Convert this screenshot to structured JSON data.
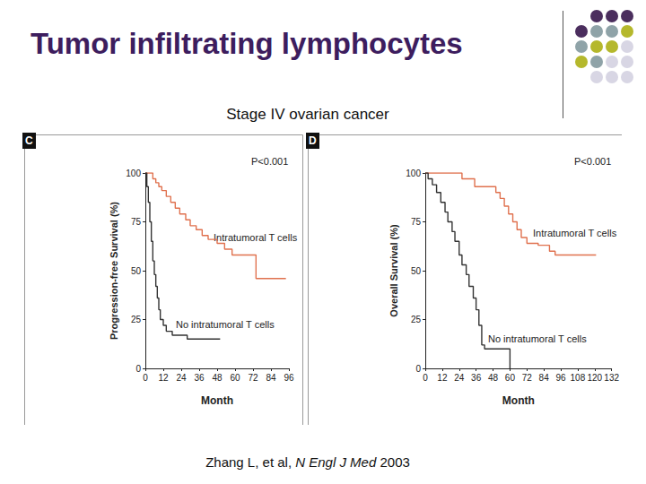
{
  "title": "Tumor infiltrating lymphocytes",
  "subtitle": "Stage IV ovarian cancer",
  "citation": {
    "authors": "Zhang L, et al,",
    "journal": "N Engl J Med",
    "year": "2003"
  },
  "chart_data": [
    {
      "type": "step",
      "panel": "C",
      "annotation": "P<0.001",
      "xlabel": "Month",
      "ylabel": "Progression-free Survival (%)",
      "xlim": [
        0,
        96
      ],
      "xticks": [
        0,
        12,
        24,
        36,
        48,
        60,
        72,
        84,
        96
      ],
      "ylim": [
        0,
        100
      ],
      "yticks": [
        0,
        25,
        50,
        75,
        100
      ],
      "grid": false,
      "series": [
        {
          "name": "Intratumoral T cells",
          "color": "#e0714e",
          "x": [
            0,
            5,
            7,
            9,
            11,
            14,
            17,
            20,
            23,
            27,
            30,
            34,
            38,
            42,
            48,
            53,
            58,
            74,
            94
          ],
          "values": [
            100,
            97,
            95,
            93,
            91,
            88,
            85,
            82,
            79,
            76,
            73,
            71,
            68,
            66,
            64,
            61,
            58,
            46,
            46
          ]
        },
        {
          "name": "No intratumoral T cells",
          "color": "#333333",
          "x": [
            0,
            1,
            2,
            3,
            4,
            5,
            6,
            7,
            8,
            9,
            10,
            12,
            14,
            18,
            24,
            28,
            50
          ],
          "values": [
            100,
            93,
            85,
            75,
            65,
            55,
            48,
            42,
            36,
            30,
            25,
            22,
            19,
            17,
            17,
            15,
            15
          ]
        }
      ]
    },
    {
      "type": "step",
      "panel": "D",
      "annotation": "P<0.001",
      "xlabel": "Month",
      "ylabel": "Overall Survival (%)",
      "xlim": [
        0,
        132
      ],
      "xticks": [
        0,
        12,
        24,
        36,
        48,
        60,
        72,
        84,
        96,
        108,
        120,
        132
      ],
      "ylim": [
        0,
        100
      ],
      "yticks": [
        0,
        25,
        50,
        75,
        100
      ],
      "grid": false,
      "series": [
        {
          "name": "Intratumoral T cells",
          "color": "#e0714e",
          "x": [
            0,
            26,
            35,
            50,
            53,
            56,
            59,
            62,
            65,
            68,
            72,
            80,
            88,
            92,
            121
          ],
          "values": [
            100,
            97,
            93,
            90,
            87,
            83,
            79,
            75,
            71,
            67,
            64,
            63,
            60,
            58,
            58
          ]
        },
        {
          "name": "No intratumoral T cells",
          "color": "#333333",
          "x": [
            0,
            2,
            5,
            8,
            11,
            14,
            16,
            19,
            21,
            24,
            26,
            29,
            31,
            34,
            36,
            38,
            40,
            42,
            58,
            60
          ],
          "values": [
            100,
            97,
            94,
            90,
            85,
            80,
            75,
            70,
            65,
            58,
            53,
            48,
            42,
            36,
            30,
            22,
            12,
            10,
            10,
            0
          ]
        }
      ]
    }
  ]
}
